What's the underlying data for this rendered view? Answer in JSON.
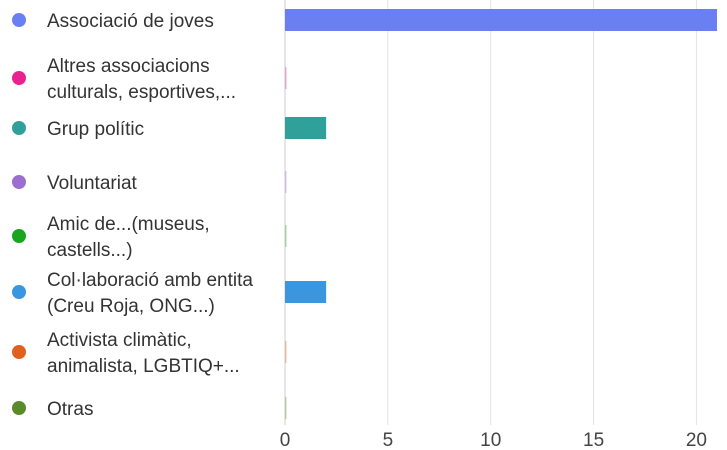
{
  "chart_data": {
    "type": "bar",
    "orientation": "horizontal",
    "legend_position": "left",
    "grid": true,
    "xlim": [
      0,
      21
    ],
    "x_ticks": [
      0,
      5,
      10,
      15,
      20
    ],
    "categories": [
      {
        "label": "Associació de joves",
        "lines": [
          "Associació de joves"
        ],
        "value": 21,
        "color": "#6a7ff2"
      },
      {
        "label": "Altres associacions culturals, esportives,...",
        "lines": [
          "Altres associacions",
          "culturals, esportives,..."
        ],
        "value": 0,
        "color": "#e8238f"
      },
      {
        "label": "Grup polític",
        "lines": [
          "Grup polític"
        ],
        "value": 2,
        "color": "#2fa19a"
      },
      {
        "label": "Voluntariat",
        "lines": [
          "Voluntariat"
        ],
        "value": 0,
        "color": "#9b6fd1"
      },
      {
        "label": "Amic de...(museus, castells...)",
        "lines": [
          "Amic de...(museus,",
          "castells...)"
        ],
        "value": 0,
        "color": "#1aa51f"
      },
      {
        "label": "Col·laboració amb entitats (Creu Roja, ONG...)",
        "lines": [
          "Col·laboració amb entita",
          "(Creu Roja, ONG...)"
        ],
        "value": 2,
        "color": "#3b96e0"
      },
      {
        "label": "Activista climàtic, animalista, LGBTIQ+...",
        "lines": [
          "Activista climàtic,",
          "animalista, LGBTIQ+..."
        ],
        "value": 0,
        "color": "#e0601e"
      },
      {
        "label": "Otras",
        "lines": [
          "Otras"
        ],
        "value": 0,
        "color": "#5a8a2a"
      }
    ]
  }
}
